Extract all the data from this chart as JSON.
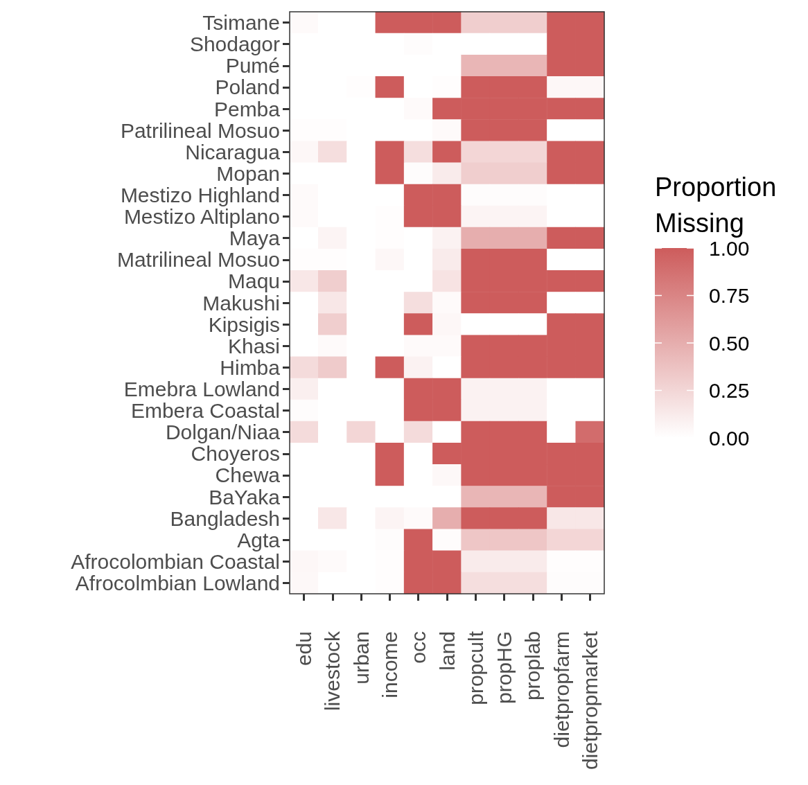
{
  "chart_data": {
    "type": "heatmap",
    "legend_title": "Proportion\nMissing",
    "categories": [
      "edu",
      "livestock",
      "urban",
      "income",
      "occ",
      "land",
      "propcult",
      "propHG",
      "proplab",
      "dietpropfarm",
      "dietpropmarket"
    ],
    "y_categories": [
      "Tsimane",
      "Shodagor",
      "Pumé",
      "Poland",
      "Pemba",
      "Patrilineal Mosuo",
      "Nicaragua",
      "Mopan",
      "Mestizo Highland",
      "Mestizo Altiplano",
      "Maya",
      "Matrilineal Mosuo",
      "Maqu",
      "Makushi",
      "Kipsigis",
      "Khasi",
      "Himba",
      "Emebra Lowland",
      "Embera Coastal",
      "Dolgan/Niaa",
      "Choyeros",
      "Chewa",
      "BaYaka",
      "Bangladesh",
      "Agta",
      "Afrocolombian Coastal",
      "Afrocolmbian Lowland"
    ],
    "cells": [
      [
        0.03,
        0,
        0,
        1,
        1,
        1,
        0.3,
        0.3,
        0.3,
        1,
        1
      ],
      [
        0,
        0,
        0,
        0,
        0.02,
        0,
        0,
        0,
        0,
        1,
        1
      ],
      [
        0,
        0,
        0,
        0,
        0,
        0,
        0.45,
        0.45,
        0.45,
        1,
        1
      ],
      [
        0,
        0,
        0.01,
        1,
        0,
        0.01,
        1,
        1,
        1,
        0.05,
        0.05
      ],
      [
        0,
        0,
        0,
        0,
        0.03,
        1,
        1,
        1,
        1,
        1,
        1
      ],
      [
        0.01,
        0.01,
        0,
        0,
        0,
        0.03,
        1,
        1,
        1,
        0,
        0
      ],
      [
        0.05,
        0.2,
        0,
        1,
        0.2,
        1,
        0.25,
        0.25,
        0.25,
        1,
        1
      ],
      [
        0,
        0,
        0,
        1,
        0.02,
        0.12,
        0.3,
        0.3,
        0.3,
        1,
        1
      ],
      [
        0.03,
        0,
        0,
        0,
        1,
        1,
        0.02,
        0.02,
        0.02,
        0,
        0
      ],
      [
        0.03,
        0,
        0,
        0.01,
        1,
        1,
        0.07,
        0.07,
        0.07,
        0,
        0
      ],
      [
        0,
        0.07,
        0,
        0.01,
        0,
        0.08,
        0.5,
        0.5,
        0.5,
        1,
        1
      ],
      [
        0.01,
        0.01,
        0,
        0.05,
        0,
        0.12,
        1,
        1,
        1,
        0,
        0
      ],
      [
        0.15,
        0.3,
        0,
        0,
        0,
        0.17,
        1,
        1,
        1,
        1,
        1
      ],
      [
        0,
        0.15,
        0,
        0,
        0.2,
        0.03,
        1,
        1,
        1,
        0,
        0
      ],
      [
        0,
        0.3,
        0,
        0,
        1,
        0.05,
        0,
        0,
        0,
        1,
        1
      ],
      [
        0,
        0.03,
        0,
        0,
        0.03,
        0.03,
        1,
        1,
        1,
        1,
        1
      ],
      [
        0.22,
        0.32,
        0,
        1,
        0.08,
        0,
        1,
        1,
        1,
        1,
        1
      ],
      [
        0.1,
        0,
        0,
        0,
        1,
        1,
        0.08,
        0.08,
        0.08,
        0,
        0
      ],
      [
        0.02,
        0,
        0,
        0,
        1,
        1,
        0.08,
        0.08,
        0.08,
        0,
        0
      ],
      [
        0.22,
        0,
        0.25,
        0,
        0.22,
        0,
        1,
        1,
        1,
        0,
        0.9
      ],
      [
        0,
        0,
        0,
        1,
        0,
        1,
        1,
        1,
        1,
        1,
        1
      ],
      [
        0,
        0,
        0,
        1,
        0,
        0.04,
        1,
        1,
        1,
        1,
        1
      ],
      [
        0,
        0,
        0,
        0,
        0,
        0,
        0.45,
        0.45,
        0.45,
        1,
        1
      ],
      [
        0,
        0.15,
        0,
        0.07,
        0.03,
        0.5,
        1,
        1,
        1,
        0.15,
        0.15
      ],
      [
        0,
        0,
        0,
        0.02,
        1,
        0.02,
        0.35,
        0.35,
        0.35,
        0.25,
        0.25
      ],
      [
        0.05,
        0.03,
        0,
        0.01,
        1,
        1,
        0.12,
        0.12,
        0.12,
        0.01,
        0.01
      ],
      [
        0.04,
        0,
        0,
        0.01,
        1,
        1,
        0.2,
        0.2,
        0.2,
        0.02,
        0.02
      ]
    ],
    "color": "#cd5c5c",
    "clim": [
      0,
      1
    ],
    "cticks": [
      {
        "value": 0,
        "label": "0.00"
      },
      {
        "value": 0.25,
        "label": "0.25"
      },
      {
        "value": 0.5,
        "label": "0.50"
      },
      {
        "value": 0.75,
        "label": "0.75"
      },
      {
        "value": 1,
        "label": "1.00"
      }
    ]
  }
}
